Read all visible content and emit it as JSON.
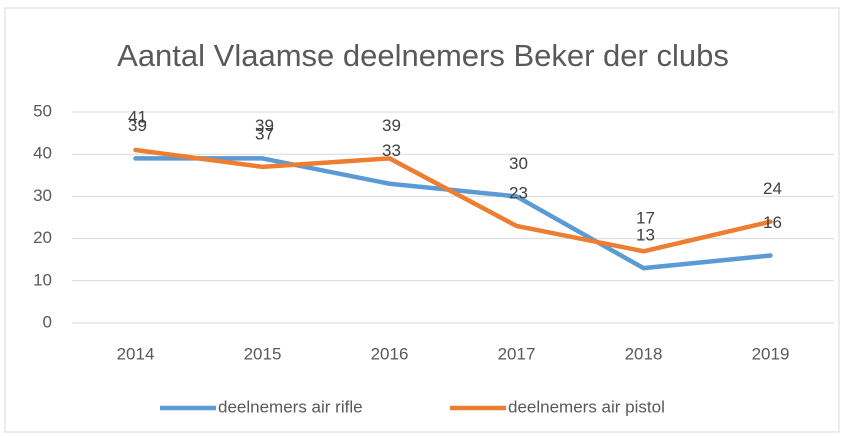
{
  "chart_data": {
    "type": "line",
    "title": "Aantal Vlaamse deelnemers Beker der clubs",
    "categories": [
      "2014",
      "2015",
      "2016",
      "2017",
      "2018",
      "2019"
    ],
    "series": [
      {
        "name": "deelnemers air rifle",
        "color": "#5b9bd5",
        "values": [
          39,
          39,
          33,
          30,
          13,
          16
        ]
      },
      {
        "name": "deelnemers air pistol",
        "color": "#ed7d31",
        "values": [
          41,
          37,
          39,
          23,
          17,
          24
        ]
      }
    ],
    "ylim": [
      0,
      50
    ],
    "yticks": [
      0,
      10,
      20,
      30,
      40,
      50
    ],
    "grid": true,
    "legend": "bottom"
  }
}
